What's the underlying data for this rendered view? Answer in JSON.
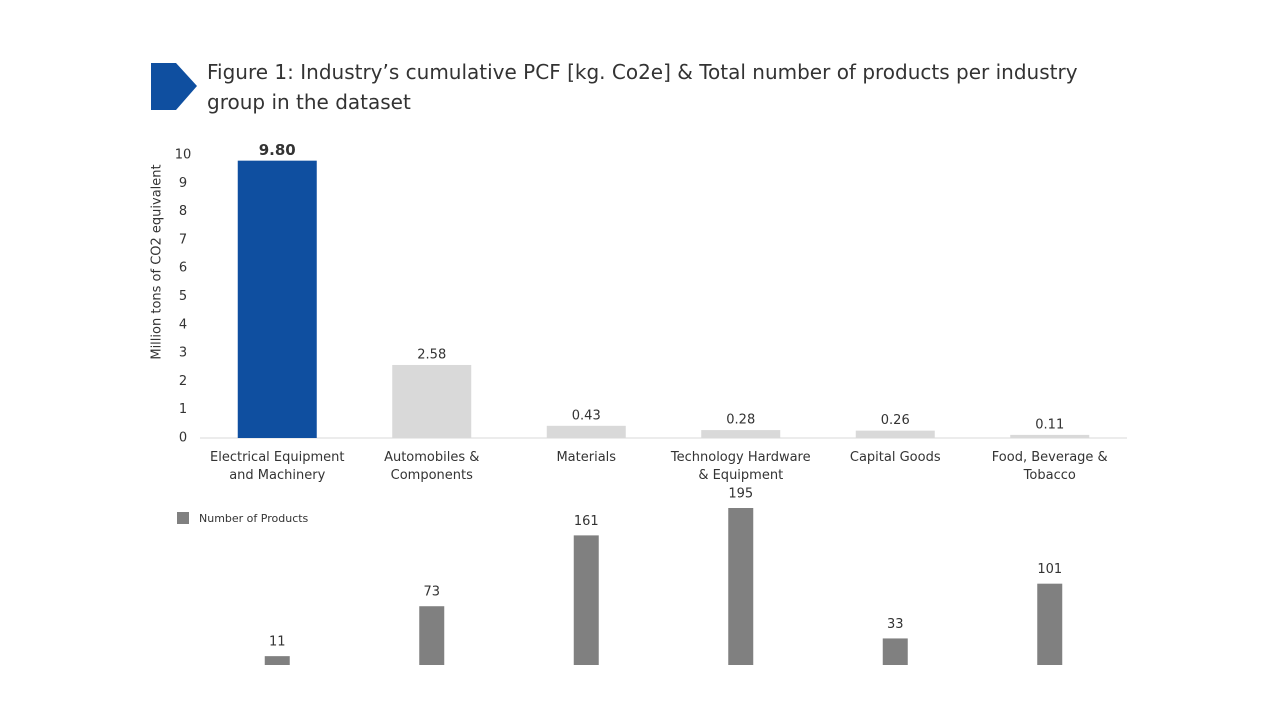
{
  "title": "Figure 1: Industry’s cumulative PCF [kg. Co2e] & Total number of products per industry group in the dataset",
  "chart_data": [
    {
      "type": "bar",
      "ylabel": "Million tons of CO2 equivalent",
      "categories": [
        "Electrical Equipment and Machinery",
        "Automobiles & Components",
        "Materials",
        "Technology Hardware & Equipment",
        "Capital Goods",
        "Food, Beverage & Tobacco"
      ],
      "values": [
        9.8,
        2.58,
        0.43,
        0.28,
        0.26,
        0.11
      ],
      "value_labels": [
        "9.80",
        "2.58",
        "0.43",
        "0.28",
        "0.26",
        "0.11"
      ],
      "colors": [
        "#0f4fa0",
        "#d9d9d9",
        "#d9d9d9",
        "#d9d9d9",
        "#d9d9d9",
        "#d9d9d9"
      ],
      "ylim": [
        0,
        10
      ],
      "yticks": [
        0,
        1,
        2,
        3,
        4,
        5,
        6,
        7,
        8,
        9,
        10
      ]
    },
    {
      "type": "bar",
      "series": [
        {
          "name": "Number of Products",
          "color": "#808080",
          "values": [
            11,
            73,
            161,
            195,
            33,
            101
          ]
        }
      ]
    }
  ]
}
